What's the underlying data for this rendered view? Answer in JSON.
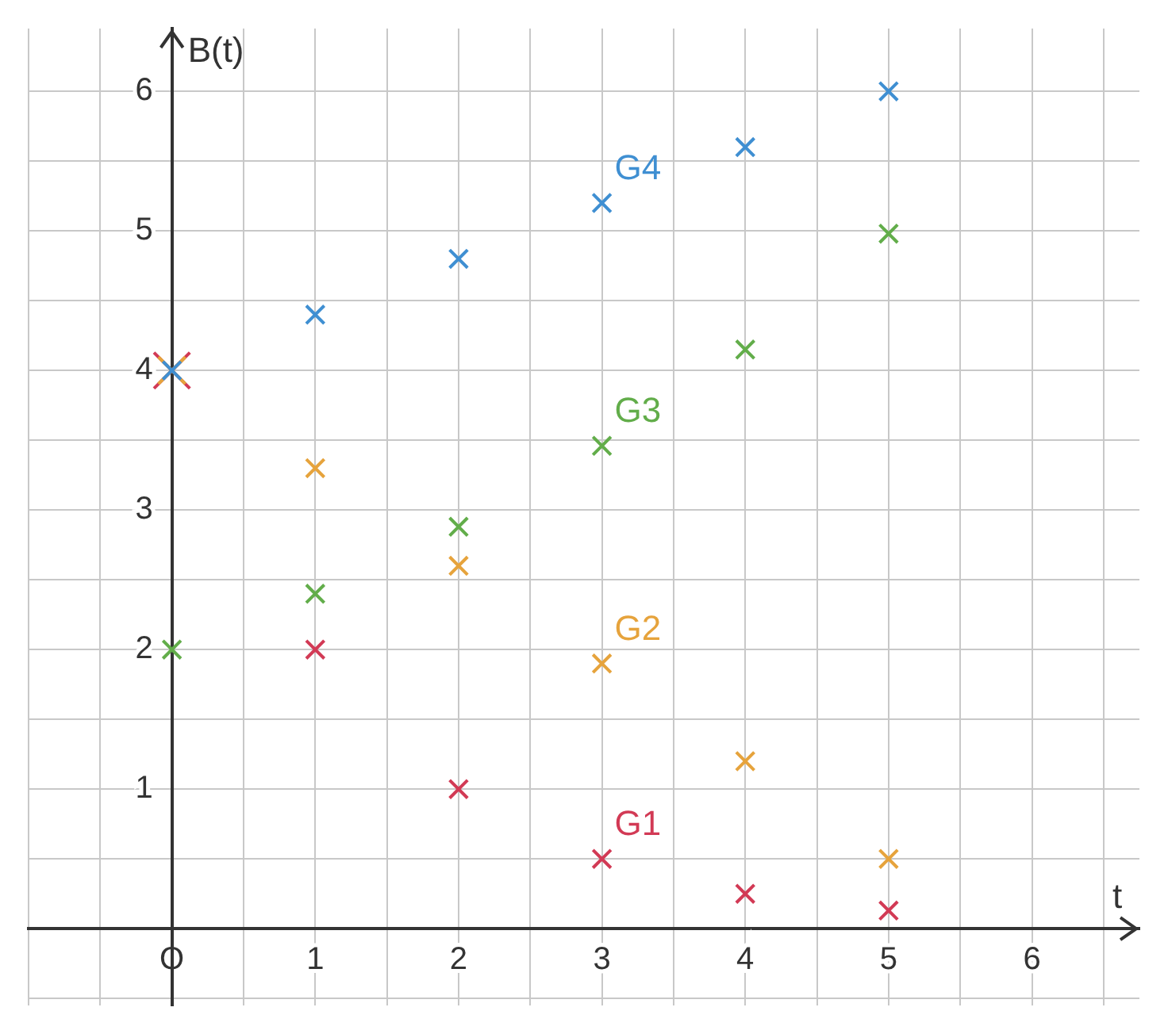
{
  "chart_data": {
    "type": "scatter",
    "xlabel": "t",
    "ylabel": "B(t)",
    "marker": "cross",
    "grid": true,
    "legend": false,
    "xlim": [
      -1,
      6.75
    ],
    "ylim": [
      -0.55,
      6.45
    ],
    "xticks": [
      {
        "value": -1,
        "label": null
      },
      {
        "value": -0.5,
        "label": null
      },
      {
        "value": 0,
        "label": "O"
      },
      {
        "value": 0.5,
        "label": null
      },
      1,
      {
        "value": 1.5,
        "label": null
      },
      2,
      {
        "value": 2.5,
        "label": null
      },
      3,
      {
        "value": 3.5,
        "label": null
      },
      4,
      {
        "value": 4.5,
        "label": null
      },
      5,
      {
        "value": 5.5,
        "label": null
      },
      6,
      {
        "value": 6.5,
        "label": null
      }
    ],
    "yticks": [
      {
        "value": -0.5,
        "label": null
      },
      {
        "value": 0,
        "label": null
      },
      {
        "value": 0.5,
        "label": null
      },
      1,
      {
        "value": 1.5,
        "label": null
      },
      2,
      {
        "value": 2.5,
        "label": null
      },
      3,
      {
        "value": 3.5,
        "label": null
      },
      4,
      {
        "value": 4.5,
        "label": null
      },
      5,
      {
        "value": 5.5,
        "label": null
      },
      6
    ],
    "x": [
      0,
      1,
      2,
      3,
      4,
      5
    ],
    "series": [
      {
        "name": "G4",
        "color": "#3f8fd2",
        "values": [
          4,
          4.4,
          4.8,
          5.2,
          5.6,
          6
        ]
      },
      {
        "name": "G3",
        "color": "#62ad4a",
        "values": [
          2,
          2.4,
          2.88,
          3.46,
          4.15,
          4.98
        ]
      },
      {
        "name": "G2",
        "color": "#e6a33c",
        "values": [
          4,
          3.3,
          2.6,
          1.9,
          1.2,
          0.5
        ]
      },
      {
        "name": "G1",
        "color": "#d23a55",
        "values": [
          4,
          2,
          1,
          0.5,
          0.25,
          0.13
        ]
      }
    ]
  }
}
